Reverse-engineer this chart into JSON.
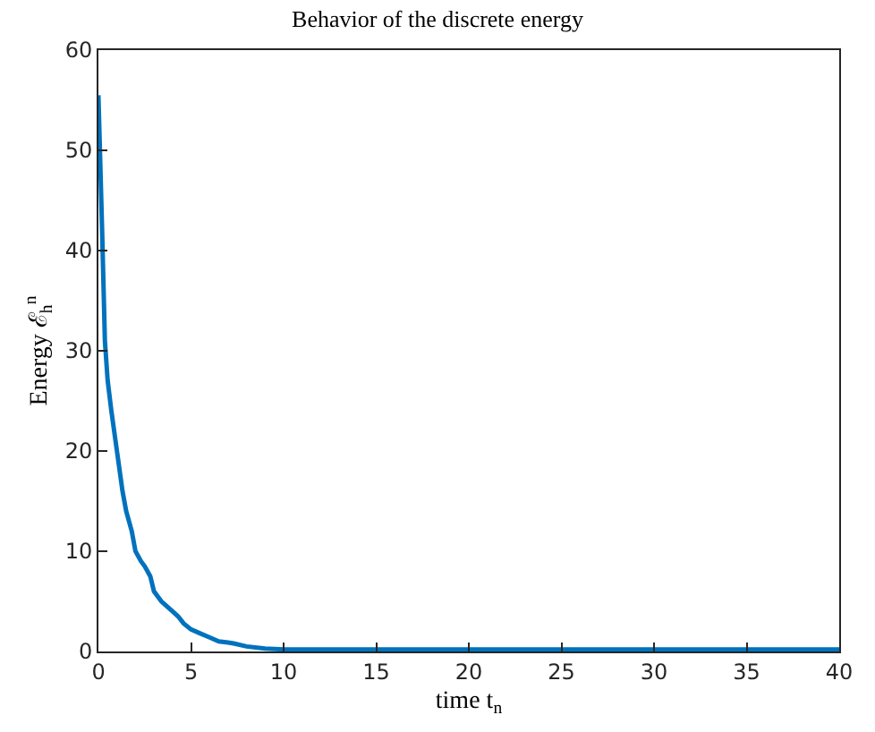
{
  "chart_data": {
    "type": "line",
    "title": "Behavior of the discrete energy",
    "xlabel": "time t$_{n}$",
    "ylabel": "Energy ℰ$_{h}$$^{n}$",
    "x": [
      0,
      0.2,
      0.35,
      0.5,
      0.7,
      1.0,
      1.3,
      1.5,
      1.8,
      2.0,
      2.3,
      2.5,
      2.8,
      3.0,
      3.4,
      3.7,
      4.0,
      4.3,
      4.6,
      5.0,
      5.5,
      6.0,
      6.5,
      7.0,
      7.3,
      8.0,
      9.0,
      10,
      12,
      15,
      20,
      30,
      40
    ],
    "series": [
      {
        "color": "#0072bd",
        "values": [
          55.5,
          42,
          31,
          27,
          24,
          20,
          16,
          14,
          12,
          10,
          9,
          8.5,
          7.5,
          6,
          5,
          4.5,
          4,
          3.5,
          2.8,
          2.2,
          1.8,
          1.4,
          1,
          0.9,
          0.8,
          0.5,
          0.3,
          0.2,
          0.2,
          0.2,
          0.2,
          0.2,
          0.2
        ]
      }
    ],
    "xlim": [
      0,
      40
    ],
    "ylim": [
      0,
      60
    ],
    "xticks": [
      0,
      5,
      10,
      15,
      20,
      25,
      30,
      35,
      40
    ],
    "yticks": [
      0,
      10,
      20,
      30,
      40,
      50,
      60
    ],
    "legend": false,
    "marker": "none",
    "line_style": "solid"
  }
}
